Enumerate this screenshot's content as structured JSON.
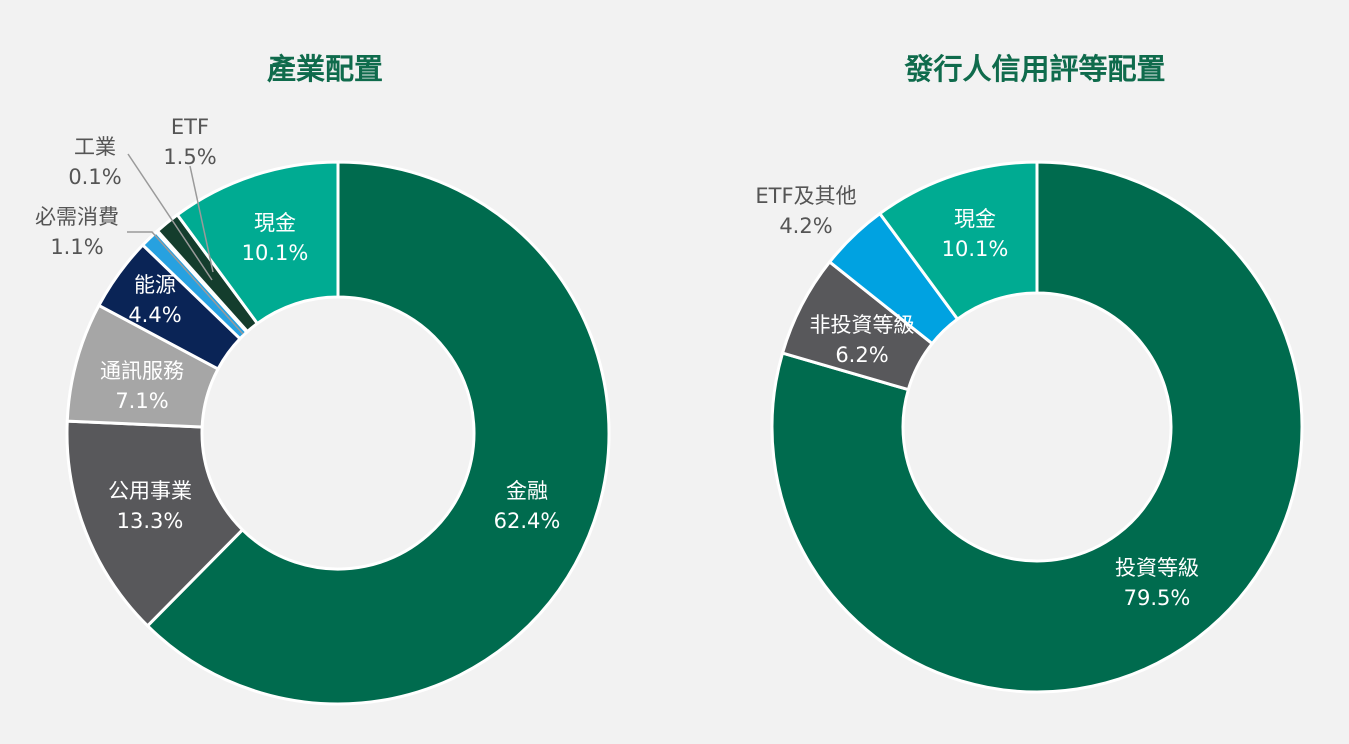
{
  "chart_data": [
    {
      "type": "pie",
      "donut": true,
      "title": "產業配置",
      "categories": [
        "金融",
        "公用事業",
        "通訊服務",
        "能源",
        "必需消費",
        "工業",
        "ETF",
        "現金"
      ],
      "values": [
        62.4,
        13.3,
        7.1,
        4.4,
        1.1,
        0.1,
        1.5,
        10.1
      ],
      "value_labels": [
        "62.4%",
        "13.3%",
        "7.1%",
        "4.4%",
        "1.1%",
        "0.1%",
        "1.5%",
        "10.1%"
      ],
      "colors": [
        "#006b4e",
        "#58585b",
        "#a6a6a6",
        "#0a2456",
        "#27a1e0",
        "#bdbdbd",
        "#143d2d",
        "#00ab92"
      ],
      "legend": "none"
    },
    {
      "type": "pie",
      "donut": true,
      "title": "發行人信用評等配置",
      "categories": [
        "投資等級",
        "非投資等級",
        "ETF及其他",
        "現金"
      ],
      "values": [
        79.5,
        6.2,
        4.2,
        10.1
      ],
      "value_labels": [
        "79.5%",
        "6.2%",
        "4.2%",
        "10.1%"
      ],
      "colors": [
        "#006b4e",
        "#58585b",
        "#00a2e1",
        "#00ab92"
      ],
      "legend": "none"
    }
  ]
}
